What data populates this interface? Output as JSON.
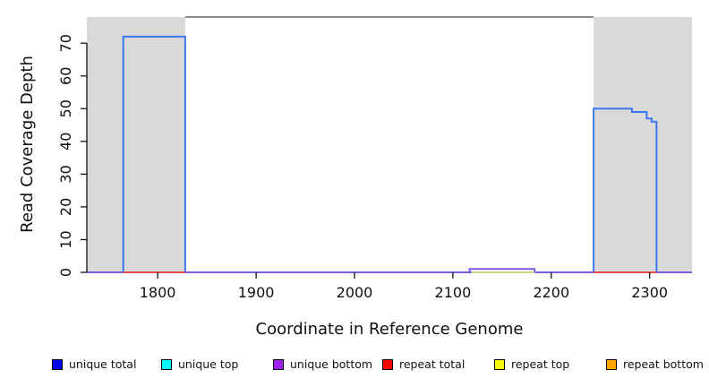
{
  "legend": {
    "items": [
      {
        "label": "unique total",
        "color": "#0000ff"
      },
      {
        "label": "unique top",
        "color": "#00ffff"
      },
      {
        "label": "unique bottom",
        "color": "#a020f0"
      },
      {
        "label": "repeat total",
        "color": "#ff0000"
      },
      {
        "label": "repeat top",
        "color": "#ffff00"
      },
      {
        "label": "repeat bottom",
        "color": "#ffa500"
      }
    ]
  },
  "chart_data": {
    "type": "area",
    "title": "",
    "xlabel": "Coordinate in Reference Genome",
    "ylabel": "Read Coverage Depth",
    "xlim": [
      1728,
      2343
    ],
    "ylim": [
      0,
      78
    ],
    "x_ticks": [
      1800,
      1900,
      2000,
      2100,
      2200,
      2300
    ],
    "y_ticks": [
      0,
      10,
      20,
      30,
      40,
      50,
      60,
      70
    ],
    "grid": false,
    "legend_position": "bottom",
    "axis_color": "#111111",
    "shaded_regions": [
      {
        "name": "left-repeat-region",
        "x0": 1728,
        "x1": 1828,
        "color": "#d9d9d9"
      },
      {
        "name": "right-repeat-region",
        "x0": 2243,
        "x1": 2343,
        "color": "#d9d9d9"
      }
    ],
    "top_boundary_segment": {
      "x0": 1828,
      "x1": 2243,
      "y": 78,
      "color": "#8c8c8c"
    },
    "series": [
      {
        "name": "unique total",
        "color": "#3c78f0",
        "segments": [
          [
            [
              1728,
              0
            ],
            [
              1765,
              0
            ],
            [
              1765,
              72
            ],
            [
              1828,
              72
            ],
            [
              1828,
              0
            ],
            [
              2243,
              0
            ],
            [
              2243,
              50
            ],
            [
              2282,
              50
            ],
            [
              2282,
              49
            ],
            [
              2297,
              49
            ],
            [
              2297,
              47
            ],
            [
              2302,
              47
            ],
            [
              2302,
              46
            ],
            [
              2307,
              46
            ],
            [
              2307,
              0
            ],
            [
              2343,
              0
            ]
          ]
        ]
      },
      {
        "name": "unique bottom",
        "color": "#7e57e2",
        "segments": [
          [
            [
              1728,
              0
            ],
            [
              2117,
              0
            ],
            [
              2117,
              1
            ],
            [
              2183,
              1
            ],
            [
              2183,
              0
            ],
            [
              2343,
              0
            ]
          ]
        ]
      },
      {
        "name": "repeat top",
        "color": "#c8d985",
        "segments": [
          [
            [
              2119,
              0
            ],
            [
              2183,
              0
            ]
          ]
        ]
      },
      {
        "name": "repeat total",
        "color": "#e84a4a",
        "segments": [
          [
            [
              1765,
              0
            ],
            [
              1828,
              0
            ]
          ],
          [
            [
              2243,
              0
            ],
            [
              2307,
              0
            ]
          ]
        ]
      }
    ]
  }
}
